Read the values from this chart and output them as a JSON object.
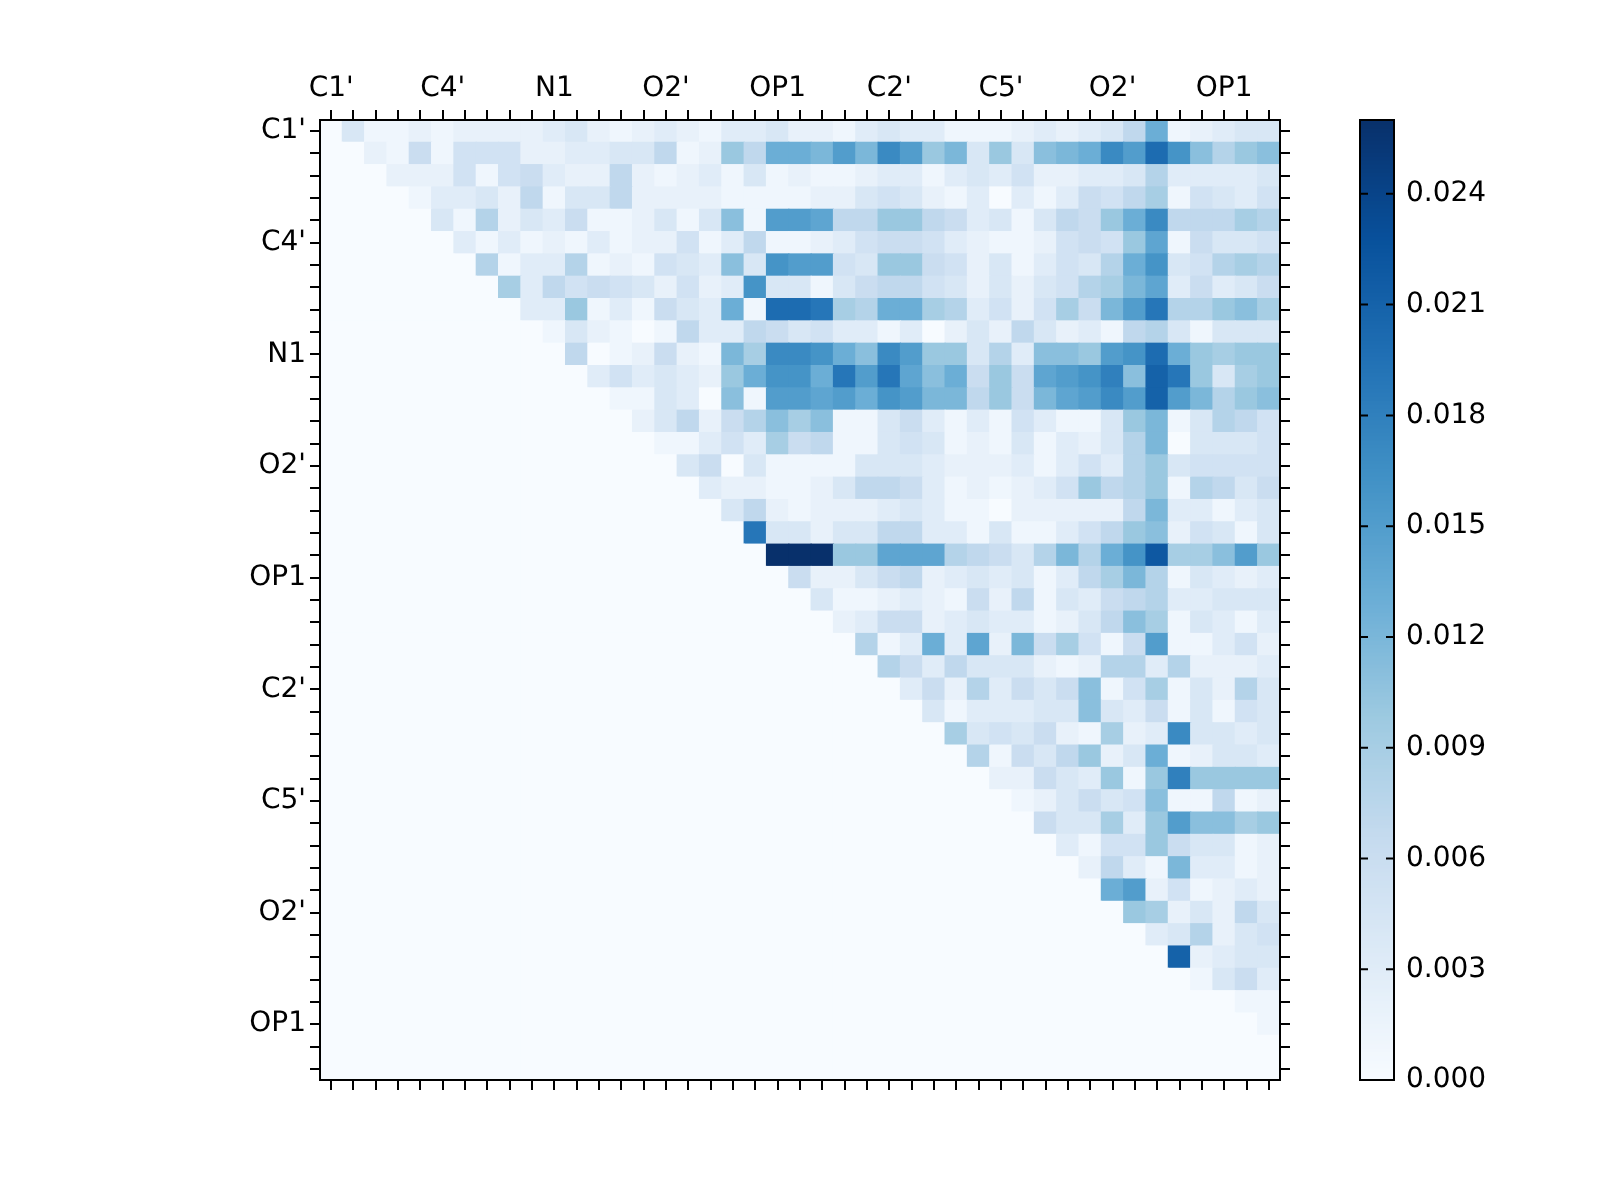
{
  "chart_data": {
    "type": "heatmap",
    "categories": [
      "C1'",
      null,
      null,
      null,
      null,
      "C4'",
      null,
      null,
      null,
      null,
      "N1",
      null,
      null,
      null,
      null,
      "O2'",
      null,
      null,
      null,
      null,
      "OP1",
      null,
      null,
      null,
      null,
      "C2'",
      null,
      null,
      null,
      null,
      "C5'",
      null,
      null,
      null,
      null,
      "O2'",
      null,
      null,
      null,
      null,
      "OP1",
      null,
      null
    ],
    "y_categories": [
      "C1'",
      null,
      null,
      null,
      null,
      "C4'",
      null,
      null,
      null,
      null,
      "N1",
      null,
      null,
      null,
      null,
      "O2'",
      null,
      null,
      null,
      null,
      "OP1",
      null,
      null,
      null,
      null,
      "C2'",
      null,
      null,
      null,
      null,
      "C5'",
      null,
      null,
      null,
      null,
      "O2'",
      null,
      null,
      null,
      null,
      "OP1",
      null,
      null
    ],
    "clim": [
      0,
      0.026
    ],
    "cticks": [
      {
        "value": 0,
        "label": "0.000"
      },
      0.003,
      0.006,
      0.009,
      0.012,
      0.015,
      0.018,
      0.021,
      0.024
    ],
    "cells": [
      [
        0,
        0.004,
        0.001,
        0.001,
        0.002,
        0.001,
        0.002,
        0.002,
        0.002,
        0.002,
        0.003,
        0.004,
        0.002,
        0.001,
        0.002,
        0.003,
        0.002,
        0.001,
        0.003,
        0.003,
        0.004,
        0.002,
        0.002,
        0.001,
        0.003,
        0.004,
        0.003,
        0.003,
        0.001,
        0.001,
        0.001,
        0.002,
        0.003,
        0.002,
        0.003,
        0.004,
        0.007,
        0.013,
        0.001,
        0.002,
        0.003,
        0.004,
        0.004
      ],
      [
        0,
        0,
        0.002,
        0.001,
        0.006,
        0.001,
        0.005,
        0.005,
        0.005,
        0.002,
        0.002,
        0.003,
        0.003,
        0.004,
        0.004,
        0.007,
        0.001,
        0.002,
        0.01,
        0.007,
        0.013,
        0.013,
        0.012,
        0.015,
        0.012,
        0.017,
        0.015,
        0.01,
        0.012,
        0.004,
        0.01,
        0.004,
        0.011,
        0.012,
        0.013,
        0.017,
        0.015,
        0.02,
        0.016,
        0.011,
        0.008,
        0.01,
        0.011
      ],
      [
        0,
        0,
        0,
        0.002,
        0.002,
        0.002,
        0.005,
        0.001,
        0.005,
        0.006,
        0.003,
        0.002,
        0.002,
        0.007,
        0.002,
        0.001,
        0.002,
        0.003,
        0.001,
        0.004,
        0.001,
        0.002,
        0.001,
        0.001,
        0.002,
        0.003,
        0.003,
        0.001,
        0.003,
        0.004,
        0.003,
        0.005,
        0.002,
        0.002,
        0.003,
        0.003,
        0.004,
        0.008,
        0.003,
        0.003,
        0.003,
        0.003,
        0.004
      ],
      [
        0,
        0,
        0,
        0,
        0.001,
        0.003,
        0.003,
        0.004,
        0.002,
        0.007,
        0.001,
        0.004,
        0.004,
        0.007,
        0.002,
        0.002,
        0.002,
        0.002,
        0.001,
        0.001,
        0.001,
        0.001,
        0.002,
        0.002,
        0.004,
        0.005,
        0.004,
        0.002,
        0.001,
        0.003,
        0.0,
        0.003,
        0.001,
        0.003,
        0.006,
        0.005,
        0.007,
        0.009,
        0.001,
        0.005,
        0.004,
        0.003,
        0.005
      ],
      [
        0,
        0,
        0,
        0,
        0,
        0.004,
        0.001,
        0.008,
        0.002,
        0.004,
        0.003,
        0.006,
        0.001,
        0.001,
        0.002,
        0.004,
        0.001,
        0.004,
        0.011,
        0.001,
        0.015,
        0.015,
        0.014,
        0.007,
        0.007,
        0.01,
        0.01,
        0.007,
        0.006,
        0.003,
        0.004,
        0.001,
        0.004,
        0.007,
        0.006,
        0.01,
        0.013,
        0.017,
        0.007,
        0.007,
        0.007,
        0.009,
        0.008
      ],
      [
        0,
        0,
        0,
        0,
        0,
        0,
        0.003,
        0.001,
        0.003,
        0.001,
        0.002,
        0.001,
        0.003,
        0.001,
        0.002,
        0.002,
        0.005,
        0.001,
        0.003,
        0.007,
        0.001,
        0.001,
        0.002,
        0.003,
        0.005,
        0.006,
        0.006,
        0.005,
        0.003,
        0.002,
        0.001,
        0.001,
        0.002,
        0.005,
        0.006,
        0.005,
        0.01,
        0.014,
        0.001,
        0.006,
        0.004,
        0.004,
        0.005
      ],
      [
        0,
        0,
        0,
        0,
        0,
        0,
        0,
        0.008,
        0.001,
        0.003,
        0.003,
        0.008,
        0.001,
        0.002,
        0.001,
        0.005,
        0.004,
        0.003,
        0.011,
        0.004,
        0.016,
        0.015,
        0.015,
        0.005,
        0.004,
        0.01,
        0.01,
        0.006,
        0.005,
        0.002,
        0.004,
        0.001,
        0.003,
        0.005,
        0.004,
        0.008,
        0.013,
        0.016,
        0.004,
        0.005,
        0.008,
        0.009,
        0.008
      ],
      [
        0,
        0,
        0,
        0,
        0,
        0,
        0,
        0,
        0.009,
        0.003,
        0.007,
        0.005,
        0.006,
        0.005,
        0.004,
        0.002,
        0.005,
        0.002,
        0.003,
        0.016,
        0.004,
        0.004,
        0.001,
        0.004,
        0.006,
        0.007,
        0.007,
        0.005,
        0.004,
        0.002,
        0.004,
        0.002,
        0.004,
        0.005,
        0.008,
        0.009,
        0.012,
        0.014,
        0.003,
        0.006,
        0.003,
        0.004,
        0.006
      ],
      [
        0,
        0,
        0,
        0,
        0,
        0,
        0,
        0,
        0,
        0.003,
        0.003,
        0.01,
        0.001,
        0.003,
        0.001,
        0.006,
        0.004,
        0.003,
        0.013,
        0.001,
        0.02,
        0.02,
        0.019,
        0.009,
        0.008,
        0.013,
        0.013,
        0.009,
        0.008,
        0.003,
        0.005,
        0.002,
        0.005,
        0.009,
        0.006,
        0.012,
        0.015,
        0.019,
        0.008,
        0.008,
        0.01,
        0.011,
        0.009
      ],
      [
        0,
        0,
        0,
        0,
        0,
        0,
        0,
        0,
        0,
        0,
        0.001,
        0.004,
        0.002,
        0.001,
        0.0,
        0.001,
        0.007,
        0.003,
        0.003,
        0.007,
        0.006,
        0.004,
        0.005,
        0.003,
        0.003,
        0.001,
        0.003,
        0.0,
        0.002,
        0.004,
        0.002,
        0.007,
        0.004,
        0.002,
        0.003,
        0.001,
        0.007,
        0.008,
        0.004,
        0.001,
        0.004,
        0.004,
        0.004
      ],
      [
        0,
        0,
        0,
        0,
        0,
        0,
        0,
        0,
        0,
        0,
        0,
        0.007,
        0.0,
        0.001,
        0.002,
        0.006,
        0.002,
        0.001,
        0.012,
        0.009,
        0.017,
        0.017,
        0.016,
        0.013,
        0.011,
        0.017,
        0.015,
        0.01,
        0.01,
        0.004,
        0.008,
        0.003,
        0.011,
        0.011,
        0.01,
        0.015,
        0.016,
        0.02,
        0.013,
        0.01,
        0.009,
        0.01,
        0.01
      ],
      [
        0,
        0,
        0,
        0,
        0,
        0,
        0,
        0,
        0,
        0,
        0,
        0,
        0.003,
        0.005,
        0.003,
        0.004,
        0.003,
        0.002,
        0.01,
        0.013,
        0.016,
        0.016,
        0.013,
        0.019,
        0.015,
        0.019,
        0.014,
        0.011,
        0.013,
        0.006,
        0.01,
        0.006,
        0.014,
        0.015,
        0.016,
        0.018,
        0.011,
        0.021,
        0.019,
        0.01,
        0.004,
        0.009,
        0.01
      ],
      [
        0,
        0,
        0,
        0,
        0,
        0,
        0,
        0,
        0,
        0,
        0,
        0,
        0,
        0.001,
        0.001,
        0.004,
        0.003,
        0.0,
        0.011,
        0.001,
        0.015,
        0.015,
        0.014,
        0.015,
        0.013,
        0.016,
        0.015,
        0.012,
        0.012,
        0.007,
        0.01,
        0.006,
        0.012,
        0.014,
        0.015,
        0.017,
        0.015,
        0.021,
        0.015,
        0.012,
        0.008,
        0.01,
        0.011
      ],
      [
        0,
        0,
        0,
        0,
        0,
        0,
        0,
        0,
        0,
        0,
        0,
        0,
        0,
        0,
        0.002,
        0.004,
        0.007,
        0.002,
        0.006,
        0.008,
        0.011,
        0.009,
        0.011,
        0.001,
        0.001,
        0.004,
        0.006,
        0.003,
        0.001,
        0.003,
        0.001,
        0.005,
        0.003,
        0.001,
        0.001,
        0.004,
        0.01,
        0.012,
        0.001,
        0.004,
        0.008,
        0.007,
        0.005
      ],
      [
        0,
        0,
        0,
        0,
        0,
        0,
        0,
        0,
        0,
        0,
        0,
        0,
        0,
        0,
        0,
        0.001,
        0.001,
        0.003,
        0.005,
        0.003,
        0.009,
        0.006,
        0.007,
        0.001,
        0.001,
        0.004,
        0.005,
        0.004,
        0.001,
        0.002,
        0.001,
        0.004,
        0.001,
        0.003,
        0.002,
        0.004,
        0.008,
        0.012,
        0.0,
        0.004,
        0.004,
        0.004,
        0.005
      ],
      [
        0,
        0,
        0,
        0,
        0,
        0,
        0,
        0,
        0,
        0,
        0,
        0,
        0,
        0,
        0,
        0,
        0.004,
        0.006,
        0.0,
        0.004,
        0.001,
        0.001,
        0.001,
        0.001,
        0.004,
        0.004,
        0.004,
        0.003,
        0.002,
        0.002,
        0.002,
        0.003,
        0.001,
        0.003,
        0.005,
        0.003,
        0.008,
        0.01,
        0.004,
        0.005,
        0.005,
        0.005,
        0.005
      ],
      [
        0,
        0,
        0,
        0,
        0,
        0,
        0,
        0,
        0,
        0,
        0,
        0,
        0,
        0,
        0,
        0,
        0,
        0.003,
        0.002,
        0.002,
        0.001,
        0.001,
        0.002,
        0.004,
        0.007,
        0.007,
        0.006,
        0.003,
        0.001,
        0.002,
        0.001,
        0.002,
        0.003,
        0.005,
        0.01,
        0.007,
        0.008,
        0.01,
        0.001,
        0.008,
        0.007,
        0.004,
        0.006
      ],
      [
        0,
        0,
        0,
        0,
        0,
        0,
        0,
        0,
        0,
        0,
        0,
        0,
        0,
        0,
        0,
        0,
        0,
        0,
        0.004,
        0.007,
        0.002,
        0.001,
        0.002,
        0.002,
        0.002,
        0.003,
        0.004,
        0.003,
        0.001,
        0.001,
        0.0,
        0.002,
        0.002,
        0.002,
        0.002,
        0.002,
        0.007,
        0.012,
        0.003,
        0.003,
        0.001,
        0.003,
        0.004
      ],
      [
        0,
        0,
        0,
        0,
        0,
        0,
        0,
        0,
        0,
        0,
        0,
        0,
        0,
        0,
        0,
        0,
        0,
        0,
        0,
        0.019,
        0.004,
        0.004,
        0.002,
        0.004,
        0.004,
        0.007,
        0.007,
        0.003,
        0.003,
        0.001,
        0.004,
        0.001,
        0.001,
        0.003,
        0.005,
        0.007,
        0.01,
        0.011,
        0.002,
        0.005,
        0.004,
        0.001,
        0.004
      ],
      [
        0,
        0,
        0,
        0,
        0,
        0,
        0,
        0,
        0,
        0,
        0,
        0,
        0,
        0,
        0,
        0,
        0,
        0,
        0,
        0,
        0.026,
        0.026,
        0.026,
        0.01,
        0.01,
        0.014,
        0.014,
        0.014,
        0.008,
        0.007,
        0.006,
        0.004,
        0.008,
        0.012,
        0.008,
        0.013,
        0.016,
        0.022,
        0.009,
        0.009,
        0.011,
        0.015,
        0.01
      ],
      [
        0,
        0,
        0,
        0,
        0,
        0,
        0,
        0,
        0,
        0,
        0,
        0,
        0,
        0,
        0,
        0,
        0,
        0,
        0,
        0,
        0,
        0.006,
        0.002,
        0.002,
        0.004,
        0.006,
        0.007,
        0.002,
        0.003,
        0.004,
        0.003,
        0.004,
        0.001,
        0.003,
        0.007,
        0.009,
        0.012,
        0.008,
        0.001,
        0.004,
        0.003,
        0.002,
        0.003
      ],
      [
        0,
        0,
        0,
        0,
        0,
        0,
        0,
        0,
        0,
        0,
        0,
        0,
        0,
        0,
        0,
        0,
        0,
        0,
        0,
        0,
        0,
        0,
        0.004,
        0.001,
        0.001,
        0.002,
        0.003,
        0.002,
        0.001,
        0.006,
        0.002,
        0.007,
        0.001,
        0.004,
        0.003,
        0.006,
        0.007,
        0.008,
        0.003,
        0.003,
        0.004,
        0.004,
        0.004
      ],
      [
        0,
        0,
        0,
        0,
        0,
        0,
        0,
        0,
        0,
        0,
        0,
        0,
        0,
        0,
        0,
        0,
        0,
        0,
        0,
        0,
        0,
        0,
        0,
        0.002,
        0.003,
        0.006,
        0.006,
        0.002,
        0.003,
        0.004,
        0.003,
        0.003,
        0.001,
        0.002,
        0.004,
        0.007,
        0.011,
        0.009,
        0.001,
        0.004,
        0.003,
        0.001,
        0.003
      ],
      [
        0,
        0,
        0,
        0,
        0,
        0,
        0,
        0,
        0,
        0,
        0,
        0,
        0,
        0,
        0,
        0,
        0,
        0,
        0,
        0,
        0,
        0,
        0,
        0,
        0.008,
        0.001,
        0.003,
        0.013,
        0.003,
        0.014,
        0.002,
        0.012,
        0.006,
        0.009,
        0.005,
        0.001,
        0.006,
        0.015,
        0.001,
        0.001,
        0.003,
        0.005,
        0.002
      ],
      [
        0,
        0,
        0,
        0,
        0,
        0,
        0,
        0,
        0,
        0,
        0,
        0,
        0,
        0,
        0,
        0,
        0,
        0,
        0,
        0,
        0,
        0,
        0,
        0,
        0,
        0.008,
        0.006,
        0.003,
        0.007,
        0.004,
        0.004,
        0.004,
        0.002,
        0.001,
        0.002,
        0.008,
        0.008,
        0.003,
        0.008,
        0.002,
        0.002,
        0.002,
        0.003
      ],
      [
        0,
        0,
        0,
        0,
        0,
        0,
        0,
        0,
        0,
        0,
        0,
        0,
        0,
        0,
        0,
        0,
        0,
        0,
        0,
        0,
        0,
        0,
        0,
        0,
        0,
        0,
        0.003,
        0.006,
        0.002,
        0.008,
        0.003,
        0.006,
        0.004,
        0.006,
        0.011,
        0.001,
        0.005,
        0.009,
        0.001,
        0.004,
        0.002,
        0.008,
        0.004
      ],
      [
        0,
        0,
        0,
        0,
        0,
        0,
        0,
        0,
        0,
        0,
        0,
        0,
        0,
        0,
        0,
        0,
        0,
        0,
        0,
        0,
        0,
        0,
        0,
        0,
        0,
        0,
        0,
        0.004,
        0.001,
        0.003,
        0.003,
        0.003,
        0.004,
        0.004,
        0.011,
        0.004,
        0.003,
        0.006,
        0.001,
        0.004,
        0.001,
        0.005,
        0.004
      ],
      [
        0,
        0,
        0,
        0,
        0,
        0,
        0,
        0,
        0,
        0,
        0,
        0,
        0,
        0,
        0,
        0,
        0,
        0,
        0,
        0,
        0,
        0,
        0,
        0,
        0,
        0,
        0,
        0,
        0.009,
        0.004,
        0.005,
        0.004,
        0.006,
        0.002,
        0.001,
        0.009,
        0.002,
        0.003,
        0.017,
        0.004,
        0.004,
        0.003,
        0.004
      ],
      [
        0,
        0,
        0,
        0,
        0,
        0,
        0,
        0,
        0,
        0,
        0,
        0,
        0,
        0,
        0,
        0,
        0,
        0,
        0,
        0,
        0,
        0,
        0,
        0,
        0,
        0,
        0,
        0,
        0,
        0.008,
        0.001,
        0.006,
        0.004,
        0.007,
        0.01,
        0.002,
        0.004,
        0.013,
        0.001,
        0.002,
        0.004,
        0.004,
        0.003
      ],
      [
        0,
        0,
        0,
        0,
        0,
        0,
        0,
        0,
        0,
        0,
        0,
        0,
        0,
        0,
        0,
        0,
        0,
        0,
        0,
        0,
        0,
        0,
        0,
        0,
        0,
        0,
        0,
        0,
        0,
        0,
        0.002,
        0.002,
        0.006,
        0.004,
        0.003,
        0.01,
        0.001,
        0.01,
        0.018,
        0.01,
        0.01,
        0.01,
        0.01
      ],
      [
        0,
        0,
        0,
        0,
        0,
        0,
        0,
        0,
        0,
        0,
        0,
        0,
        0,
        0,
        0,
        0,
        0,
        0,
        0,
        0,
        0,
        0,
        0,
        0,
        0,
        0,
        0,
        0,
        0,
        0,
        0,
        0.001,
        0.002,
        0.004,
        0.006,
        0.004,
        0.005,
        0.011,
        0.001,
        0.001,
        0.007,
        0.001,
        0.002
      ],
      [
        0,
        0,
        0,
        0,
        0,
        0,
        0,
        0,
        0,
        0,
        0,
        0,
        0,
        0,
        0,
        0,
        0,
        0,
        0,
        0,
        0,
        0,
        0,
        0,
        0,
        0,
        0,
        0,
        0,
        0,
        0,
        0,
        0.006,
        0.004,
        0.004,
        0.009,
        0.003,
        0.01,
        0.015,
        0.011,
        0.011,
        0.009,
        0.01
      ],
      [
        0,
        0,
        0,
        0,
        0,
        0,
        0,
        0,
        0,
        0,
        0,
        0,
        0,
        0,
        0,
        0,
        0,
        0,
        0,
        0,
        0,
        0,
        0,
        0,
        0,
        0,
        0,
        0,
        0,
        0,
        0,
        0,
        0,
        0.003,
        0.001,
        0.005,
        0.005,
        0.01,
        0.006,
        0.004,
        0.004,
        0.001,
        0.002
      ],
      [
        0,
        0,
        0,
        0,
        0,
        0,
        0,
        0,
        0,
        0,
        0,
        0,
        0,
        0,
        0,
        0,
        0,
        0,
        0,
        0,
        0,
        0,
        0,
        0,
        0,
        0,
        0,
        0,
        0,
        0,
        0,
        0,
        0,
        0,
        0.002,
        0.007,
        0.003,
        0.001,
        0.012,
        0.003,
        0.003,
        0.001,
        0.002
      ],
      [
        0,
        0,
        0,
        0,
        0,
        0,
        0,
        0,
        0,
        0,
        0,
        0,
        0,
        0,
        0,
        0,
        0,
        0,
        0,
        0,
        0,
        0,
        0,
        0,
        0,
        0,
        0,
        0,
        0,
        0,
        0,
        0,
        0,
        0,
        0,
        0.013,
        0.015,
        0.002,
        0.005,
        0.001,
        0.002,
        0.003,
        0.002
      ],
      [
        0,
        0,
        0,
        0,
        0,
        0,
        0,
        0,
        0,
        0,
        0,
        0,
        0,
        0,
        0,
        0,
        0,
        0,
        0,
        0,
        0,
        0,
        0,
        0,
        0,
        0,
        0,
        0,
        0,
        0,
        0,
        0,
        0,
        0,
        0,
        0,
        0.01,
        0.009,
        0.002,
        0.004,
        0.002,
        0.007,
        0.004
      ],
      [
        0,
        0,
        0,
        0,
        0,
        0,
        0,
        0,
        0,
        0,
        0,
        0,
        0,
        0,
        0,
        0,
        0,
        0,
        0,
        0,
        0,
        0,
        0,
        0,
        0,
        0,
        0,
        0,
        0,
        0,
        0,
        0,
        0,
        0,
        0,
        0,
        0,
        0.003,
        0.004,
        0.008,
        0.002,
        0.004,
        0.005
      ],
      [
        0,
        0,
        0,
        0,
        0,
        0,
        0,
        0,
        0,
        0,
        0,
        0,
        0,
        0,
        0,
        0,
        0,
        0,
        0,
        0,
        0,
        0,
        0,
        0,
        0,
        0,
        0,
        0,
        0,
        0,
        0,
        0,
        0,
        0,
        0,
        0,
        0,
        0,
        0.021,
        0.002,
        0.003,
        0.004,
        0.004
      ],
      [
        0,
        0,
        0,
        0,
        0,
        0,
        0,
        0,
        0,
        0,
        0,
        0,
        0,
        0,
        0,
        0,
        0,
        0,
        0,
        0,
        0,
        0,
        0,
        0,
        0,
        0,
        0,
        0,
        0,
        0,
        0,
        0,
        0,
        0,
        0,
        0,
        0,
        0,
        0,
        0.001,
        0.004,
        0.006,
        0.003
      ],
      [
        0,
        0,
        0,
        0,
        0,
        0,
        0,
        0,
        0,
        0,
        0,
        0,
        0,
        0,
        0,
        0,
        0,
        0,
        0,
        0,
        0,
        0,
        0,
        0,
        0,
        0,
        0,
        0,
        0,
        0,
        0,
        0,
        0,
        0,
        0,
        0,
        0,
        0,
        0,
        0,
        0.0,
        0.001,
        0.001
      ],
      [
        0,
        0,
        0,
        0,
        0,
        0,
        0,
        0,
        0,
        0,
        0,
        0,
        0,
        0,
        0,
        0,
        0,
        0,
        0,
        0,
        0,
        0,
        0,
        0,
        0,
        0,
        0,
        0,
        0,
        0,
        0,
        0,
        0,
        0,
        0,
        0,
        0,
        0,
        0,
        0,
        0,
        0.0,
        0.001
      ],
      [
        0,
        0,
        0,
        0,
        0,
        0,
        0,
        0,
        0,
        0,
        0,
        0,
        0,
        0,
        0,
        0,
        0,
        0,
        0,
        0,
        0,
        0,
        0,
        0,
        0,
        0,
        0,
        0,
        0,
        0,
        0,
        0,
        0,
        0,
        0,
        0,
        0,
        0,
        0,
        0,
        0,
        0,
        0.0
      ],
      [
        0,
        0,
        0,
        0,
        0,
        0,
        0,
        0,
        0,
        0,
        0,
        0,
        0,
        0,
        0,
        0,
        0,
        0,
        0,
        0,
        0,
        0,
        0,
        0,
        0,
        0,
        0,
        0,
        0,
        0,
        0,
        0,
        0,
        0,
        0,
        0,
        0,
        0,
        0,
        0,
        0,
        0,
        0
      ]
    ]
  }
}
